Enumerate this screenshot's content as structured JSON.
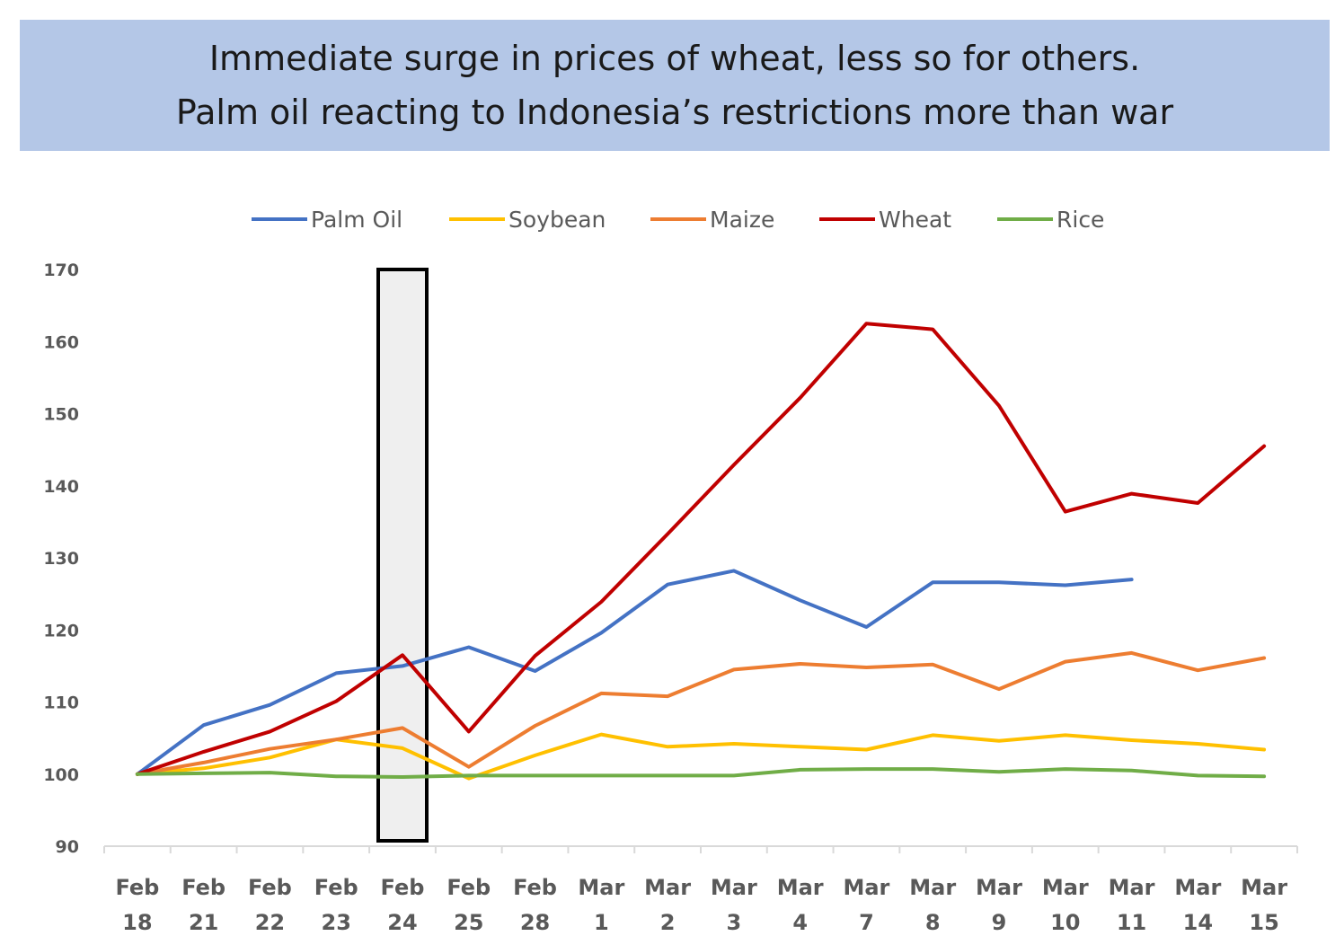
{
  "chart_data": {
    "type": "line",
    "title": "Immediate surge in prices of wheat, less so for others.",
    "subtitle": "Palm oil reacting to Indonesia’s restrictions more than war",
    "categories": [
      [
        "Feb",
        "18"
      ],
      [
        "Feb",
        "21"
      ],
      [
        "Feb",
        "22"
      ],
      [
        "Feb",
        "23"
      ],
      [
        "Feb",
        "24"
      ],
      [
        "Feb",
        "25"
      ],
      [
        "Feb",
        "28"
      ],
      [
        "Mar",
        "1"
      ],
      [
        "Mar",
        "2"
      ],
      [
        "Mar",
        "3"
      ],
      [
        "Mar",
        "4"
      ],
      [
        "Mar",
        "7"
      ],
      [
        "Mar",
        "8"
      ],
      [
        "Mar",
        "9"
      ],
      [
        "Mar",
        "10"
      ],
      [
        "Mar",
        "11"
      ],
      [
        "Mar",
        "14"
      ],
      [
        "Mar",
        "15"
      ]
    ],
    "ylim": [
      90,
      170
    ],
    "yticks": [
      90,
      100,
      110,
      120,
      130,
      140,
      150,
      160,
      170
    ],
    "legend_position": "top",
    "highlight_category": 4,
    "series": [
      {
        "name": "Palm Oil",
        "color": "#4472c4",
        "values": [
          100,
          106.8,
          109.6,
          114,
          115,
          117.6,
          114.3,
          119.6,
          126.3,
          128.2,
          124.1,
          120.4,
          126.6,
          126.6,
          126.2,
          127,
          null,
          null
        ]
      },
      {
        "name": "Soybean",
        "color": "#ffc000",
        "values": [
          100,
          100.8,
          102.3,
          104.8,
          103.6,
          99.4,
          102.6,
          105.5,
          103.8,
          104.2,
          103.8,
          103.4,
          105.4,
          104.6,
          105.4,
          104.7,
          104.2,
          103.4
        ]
      },
      {
        "name": "Maize",
        "color": "#ed7d31",
        "values": [
          100,
          101.6,
          103.5,
          104.8,
          106.4,
          101,
          106.7,
          111.2,
          110.8,
          114.5,
          115.3,
          114.8,
          115.2,
          111.8,
          115.6,
          116.8,
          114.4,
          116.1
        ]
      },
      {
        "name": "Wheat",
        "color": "#c00000",
        "values": [
          100,
          103.1,
          105.9,
          110.1,
          116.5,
          105.9,
          116.4,
          123.9,
          133.3,
          142.9,
          152.2,
          162.5,
          161.7,
          151.1,
          136.4,
          138.9,
          137.6,
          145.5
        ]
      },
      {
        "name": "Rice",
        "color": "#70ad47",
        "values": [
          100,
          100.1,
          100.2,
          99.7,
          99.6,
          99.8,
          99.8,
          99.8,
          99.8,
          99.8,
          100.6,
          100.7,
          100.7,
          100.3,
          100.7,
          100.5,
          99.8,
          99.7
        ]
      }
    ]
  }
}
